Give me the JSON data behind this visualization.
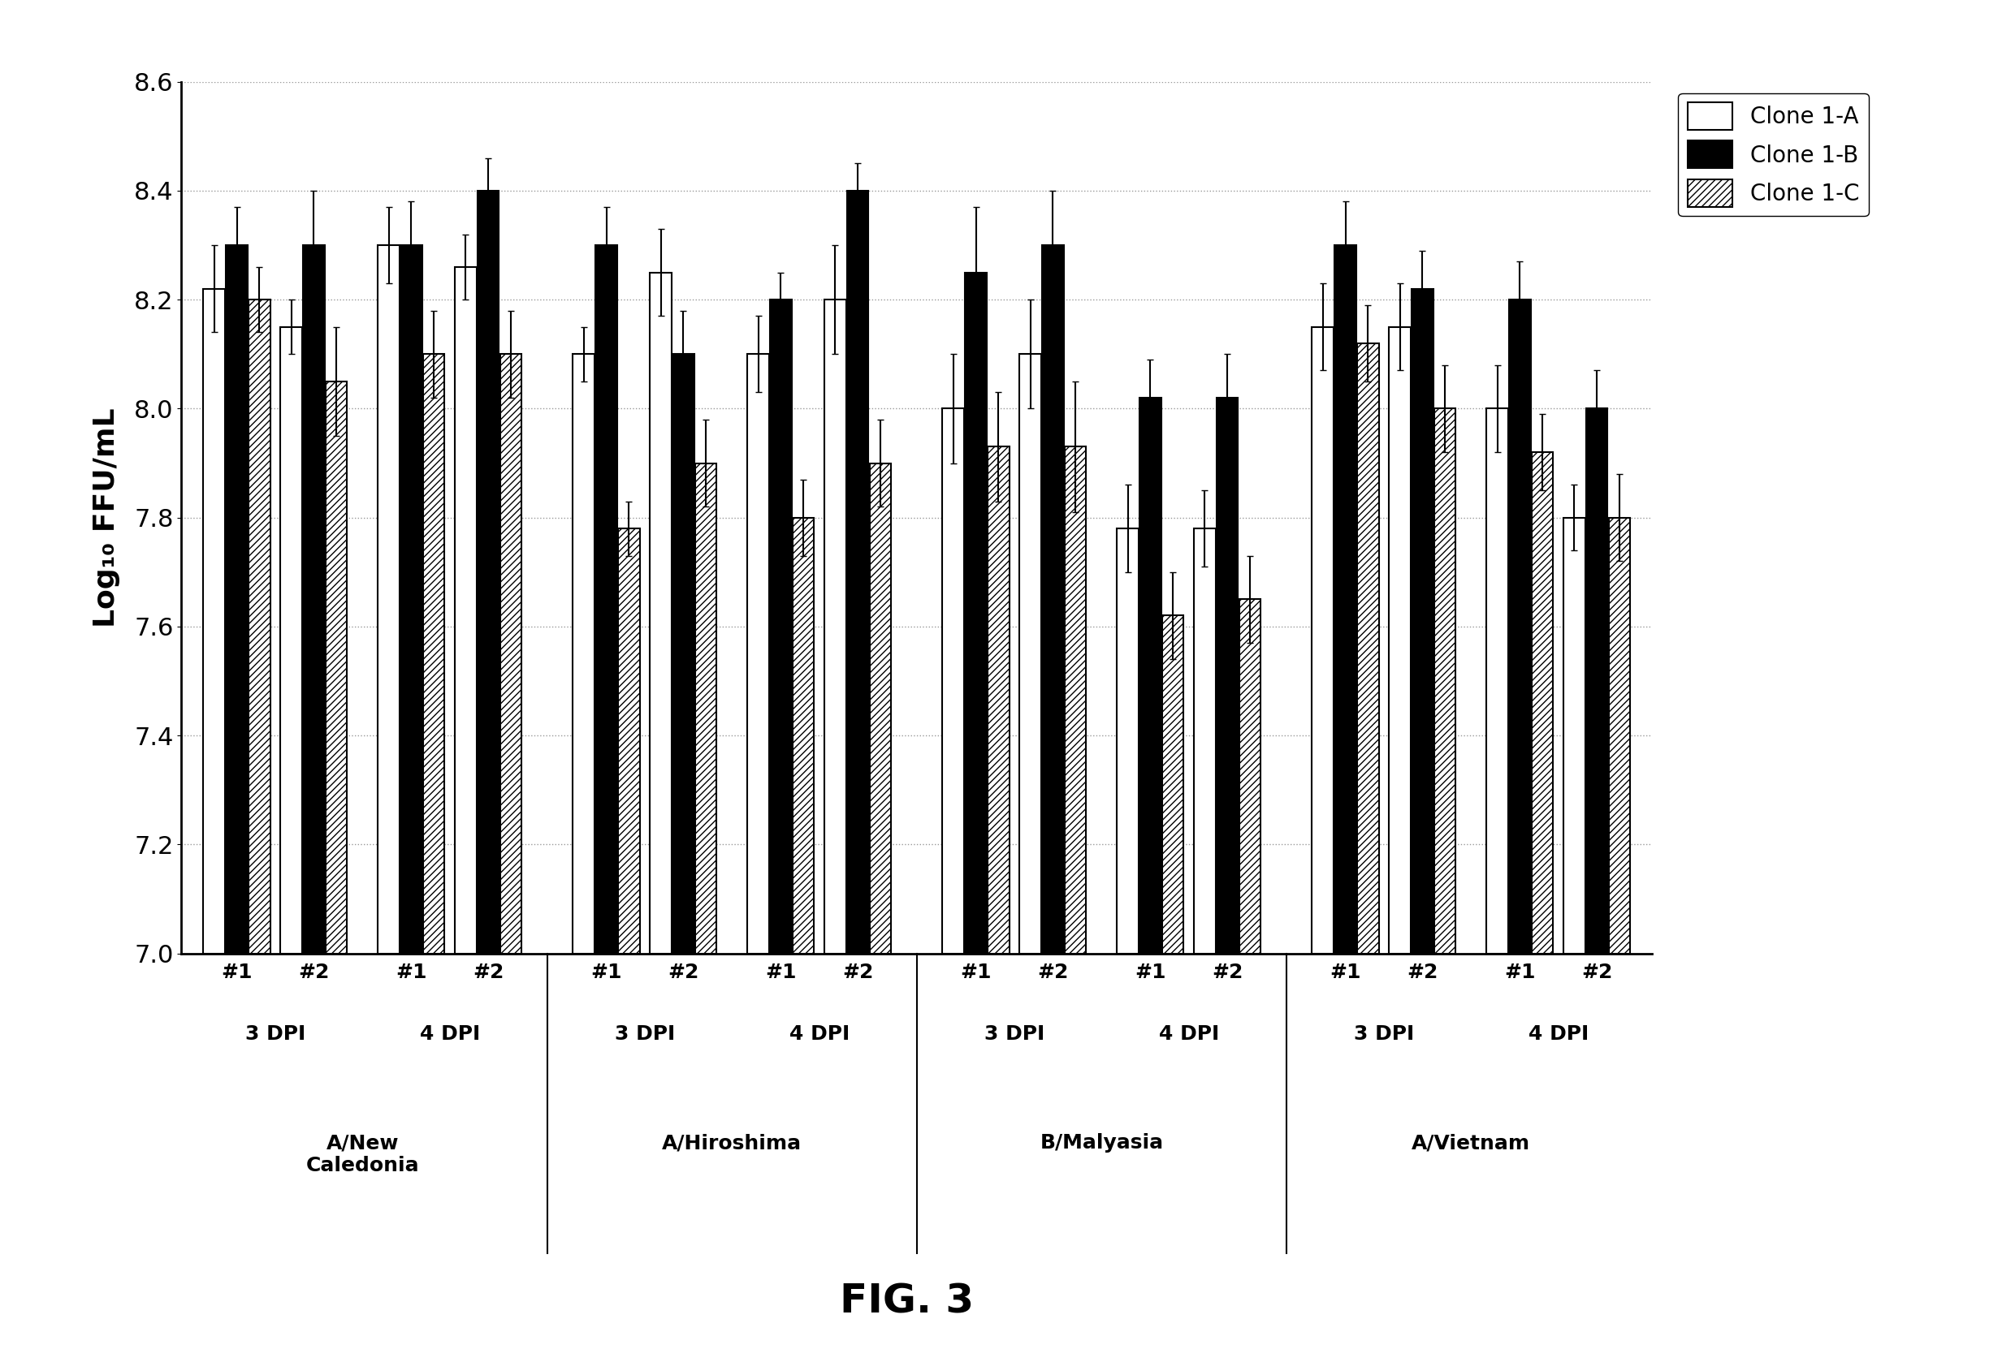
{
  "title": "FIG. 3",
  "ylabel": "Log₁₀ FFU/mL",
  "ylim": [
    7.0,
    8.6
  ],
  "yticks": [
    7.0,
    7.2,
    7.4,
    7.6,
    7.8,
    8.0,
    8.2,
    8.4,
    8.6
  ],
  "groups": [
    {
      "label": "#1",
      "dpi": "3 DPI",
      "strain": "A/New\nCaledonia"
    },
    {
      "label": "#2",
      "dpi": "3 DPI",
      "strain": "A/New\nCaledonia"
    },
    {
      "label": "#1",
      "dpi": "4 DPI",
      "strain": "A/New\nCaledonia"
    },
    {
      "label": "#2",
      "dpi": "4 DPI",
      "strain": "A/New\nCaledonia"
    },
    {
      "label": "#1",
      "dpi": "3 DPI",
      "strain": "A/Hiroshima"
    },
    {
      "label": "#2",
      "dpi": "3 DPI",
      "strain": "A/Hiroshima"
    },
    {
      "label": "#1",
      "dpi": "4 DPI",
      "strain": "A/Hiroshima"
    },
    {
      "label": "#2",
      "dpi": "4 DPI",
      "strain": "A/Hiroshima"
    },
    {
      "label": "#1",
      "dpi": "3 DPI",
      "strain": "B/Malyasia"
    },
    {
      "label": "#2",
      "dpi": "3 DPI",
      "strain": "B/Malyasia"
    },
    {
      "label": "#1",
      "dpi": "4 DPI",
      "strain": "B/Malyasia"
    },
    {
      "label": "#2",
      "dpi": "4 DPI",
      "strain": "B/Malyasia"
    },
    {
      "label": "#1",
      "dpi": "3 DPI",
      "strain": "A/Vietnam"
    },
    {
      "label": "#2",
      "dpi": "3 DPI",
      "strain": "A/Vietnam"
    },
    {
      "label": "#1",
      "dpi": "4 DPI",
      "strain": "A/Vietnam"
    },
    {
      "label": "#2",
      "dpi": "4 DPI",
      "strain": "A/Vietnam"
    }
  ],
  "clone_1A": [
    8.22,
    8.15,
    8.3,
    8.26,
    8.1,
    8.25,
    8.1,
    8.2,
    8.0,
    8.1,
    7.78,
    7.78,
    8.15,
    8.15,
    8.0,
    7.8
  ],
  "clone_1B": [
    8.3,
    8.3,
    8.3,
    8.4,
    8.3,
    8.1,
    8.2,
    8.4,
    8.25,
    8.3,
    8.02,
    8.02,
    8.3,
    8.22,
    8.2,
    8.0
  ],
  "clone_1C": [
    8.2,
    8.05,
    8.1,
    8.1,
    7.78,
    7.9,
    7.8,
    7.9,
    7.93,
    7.93,
    7.62,
    7.65,
    8.12,
    8.0,
    7.92,
    7.8
  ],
  "err_1A": [
    0.08,
    0.05,
    0.07,
    0.06,
    0.05,
    0.08,
    0.07,
    0.1,
    0.1,
    0.1,
    0.08,
    0.07,
    0.08,
    0.08,
    0.08,
    0.06
  ],
  "err_1B": [
    0.07,
    0.1,
    0.08,
    0.06,
    0.07,
    0.08,
    0.05,
    0.05,
    0.12,
    0.1,
    0.07,
    0.08,
    0.08,
    0.07,
    0.07,
    0.07
  ],
  "err_1C": [
    0.06,
    0.1,
    0.08,
    0.08,
    0.05,
    0.08,
    0.07,
    0.08,
    0.1,
    0.12,
    0.08,
    0.08,
    0.07,
    0.08,
    0.07,
    0.08
  ],
  "strain_names": [
    "A/New\nCaledonia",
    "A/Hiroshima",
    "B/Malyasia",
    "A/Vietnam"
  ],
  "dpi_labels": [
    "3 DPI",
    "4 DPI"
  ],
  "legend_labels": [
    "Clone 1-A",
    "Clone 1-B",
    "Clone 1-C"
  ],
  "background_color": "#ffffff"
}
